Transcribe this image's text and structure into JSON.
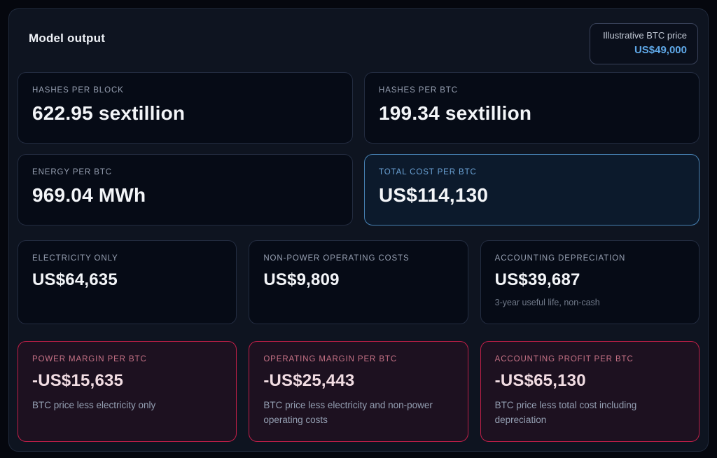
{
  "header": {
    "title": "Model output",
    "badge": {
      "label": "Illustrative BTC price",
      "value": "US$49,000"
    }
  },
  "cards": {
    "hashes_per_block": {
      "label": "HASHES PER BLOCK",
      "value": "622.95 sextillion"
    },
    "hashes_per_btc": {
      "label": "HASHES PER BTC",
      "value": "199.34 sextillion"
    },
    "energy_per_btc": {
      "label": "ENERGY PER BTC",
      "value": "969.04 MWh"
    },
    "total_cost_per_btc": {
      "label": "TOTAL COST PER BTC",
      "value": "US$114,130"
    },
    "electricity_only": {
      "label": "ELECTRICITY ONLY",
      "value": "US$64,635"
    },
    "non_power_operating_costs": {
      "label": "NON-POWER OPERATING COSTS",
      "value": "US$9,809"
    },
    "accounting_depreciation": {
      "label": "ACCOUNTING DEPRECIATION",
      "value": "US$39,687",
      "note": "3-year useful life, non-cash"
    },
    "power_margin_per_btc": {
      "label": "POWER MARGIN PER BTC",
      "value": "-US$15,635",
      "note": "BTC price less electricity only"
    },
    "operating_margin_per_btc": {
      "label": "OPERATING MARGIN PER BTC",
      "value": "-US$25,443",
      "note": "BTC price less electricity and non-power operating costs"
    },
    "accounting_profit_per_btc": {
      "label": "ACCOUNTING PROFIT PER BTC",
      "value": "-US$65,130",
      "note": "BTC price less total cost including depreciation"
    }
  },
  "colors": {
    "accent_blue_text": "#5fa8e8",
    "highlight_card_border_blue": "#4781b3",
    "negative_card_border_red": "#c01f48",
    "negative_label_rose": "#c77286",
    "panel_background": "#0e1420",
    "card_background": "#060b16"
  }
}
